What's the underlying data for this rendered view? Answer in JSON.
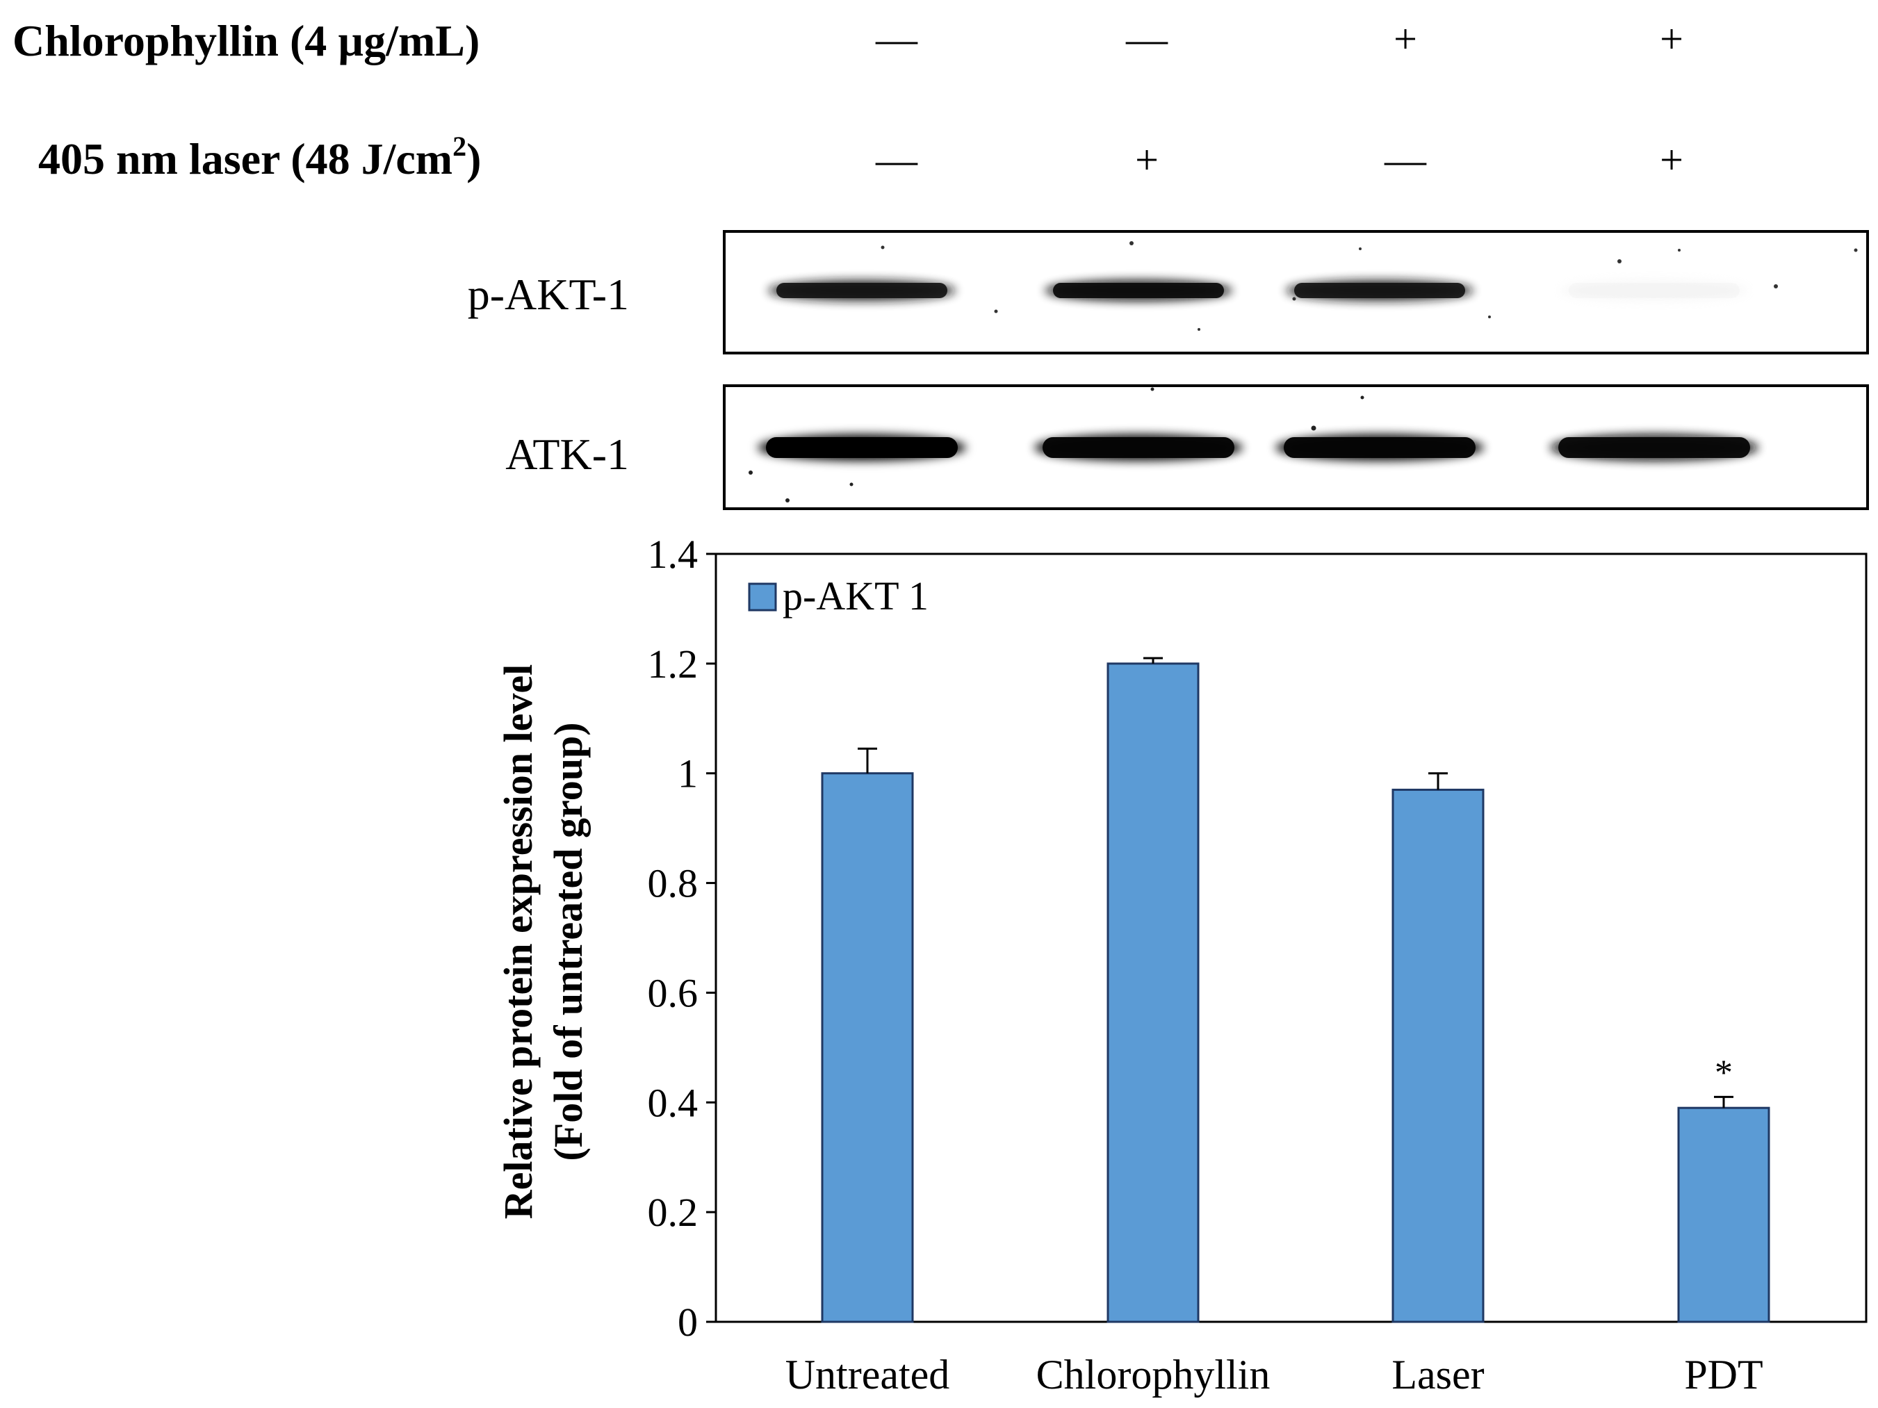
{
  "treatments": {
    "rows": [
      {
        "label": "Chlorophyllin (4 µg/mL)",
        "signs": [
          "—",
          "—",
          "+",
          "+"
        ]
      },
      {
        "label": "405 nm laser (48 J/cm",
        "superscript": "2",
        "label_end": ")",
        "signs": [
          "—",
          "+",
          "—",
          "+"
        ]
      }
    ]
  },
  "blots": {
    "rows": [
      {
        "label": "p-AKT-1",
        "band_intensity": [
          0.92,
          0.95,
          0.92,
          0.12
        ]
      },
      {
        "label": "ATK-1",
        "band_intensity": [
          1.0,
          0.98,
          0.98,
          0.97
        ]
      }
    ]
  },
  "chart_data": {
    "type": "bar",
    "title": "",
    "categories": [
      "Untreated",
      "Chlorophyllin",
      "Laser",
      "PDT"
    ],
    "series": [
      {
        "name": "p-AKT 1",
        "color": "#5b9bd5",
        "values": [
          1.0,
          1.2,
          0.97,
          0.39
        ],
        "errors": [
          0.045,
          0.01,
          0.03,
          0.02
        ]
      }
    ],
    "annotations": [
      {
        "category": "PDT",
        "text": "*"
      }
    ],
    "xlabel": "",
    "ylabel": [
      "Relative protein expression level",
      "(Fold of untreated group)"
    ],
    "ylim": [
      0,
      1.4
    ],
    "yticks": [
      "0",
      "0.2",
      "0.4",
      "0.6",
      "0.8",
      "1",
      "1.2",
      "1.4"
    ],
    "ytick_values": [
      0,
      0.2,
      0.4,
      0.6,
      0.8,
      1.0,
      1.2,
      1.4
    ],
    "grid": false,
    "legend_position": "top-left"
  }
}
